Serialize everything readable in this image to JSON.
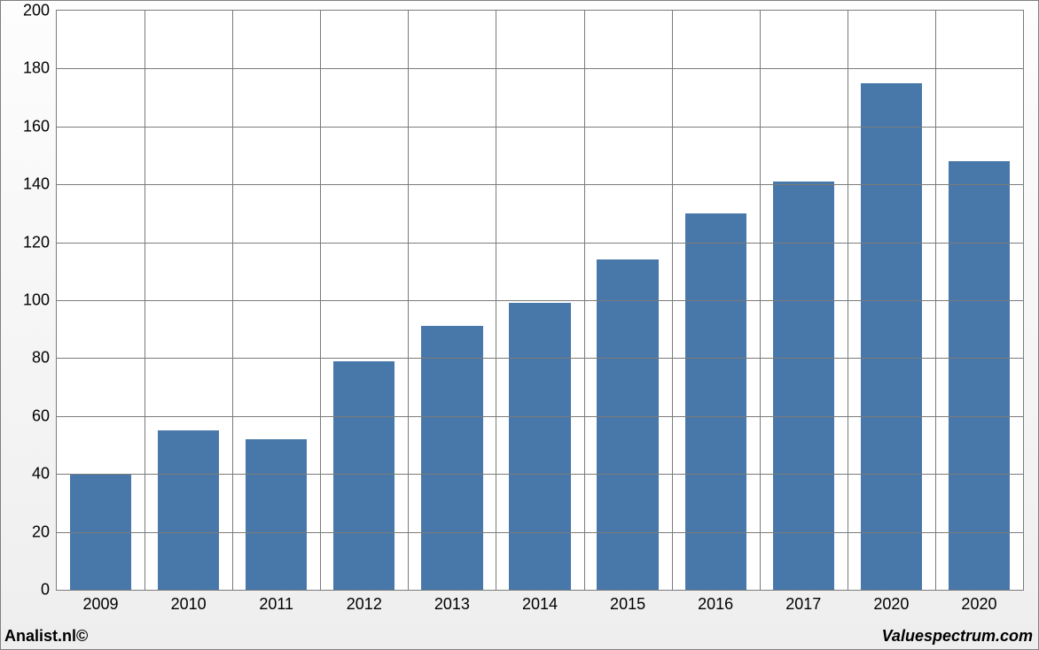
{
  "chart": {
    "type": "bar",
    "categories": [
      "2009",
      "2010",
      "2011",
      "2012",
      "2013",
      "2014",
      "2015",
      "2016",
      "2017",
      "2020",
      "2020"
    ],
    "values": [
      40,
      55,
      52,
      79,
      91,
      99,
      114,
      130,
      141,
      175,
      148
    ],
    "bar_color": "#4878a9",
    "background_color": "#ffffff",
    "grid_color": "#7b7b7b",
    "ylim": [
      0,
      200
    ],
    "ytick_step": 20,
    "yticks": [
      0,
      20,
      40,
      60,
      80,
      100,
      120,
      140,
      160,
      180,
      200
    ],
    "bar_width_ratio": 0.7,
    "tick_fontsize": 18,
    "tick_color": "#000000",
    "panel_border_color": "#7b7b7b",
    "outer_border_color": "#808080",
    "outer_bg_gradient_top": "#fdfdfd",
    "outer_bg_gradient_bottom": "#eeeeee"
  },
  "footer": {
    "left": "Analist.nl©",
    "right": "Valuespectrum.com",
    "fontsize": 18
  }
}
